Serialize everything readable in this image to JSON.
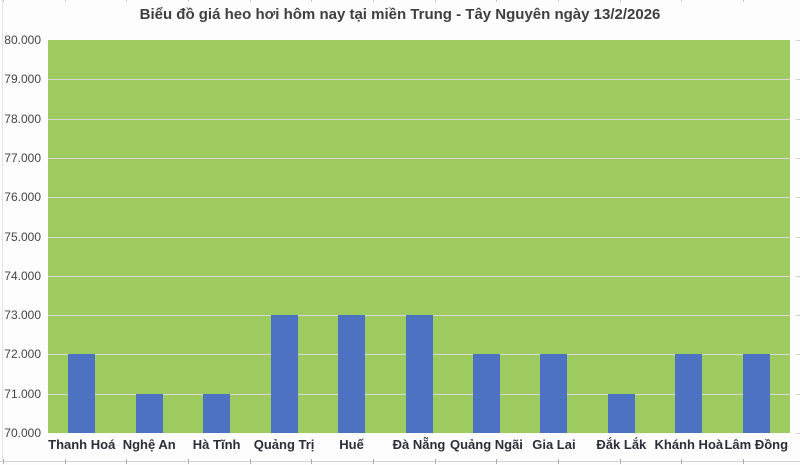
{
  "title": "Biểu đồ giá heo hơi hôm nay tại miền Trung - Tây Nguyên ngày 13/2/2026",
  "chart_data": {
    "type": "bar",
    "title": "Biểu đồ giá heo hơi hôm nay tại miền Trung - Tây Nguyên ngày 13/2/2026",
    "categories": [
      "Thanh Hoá",
      "Nghệ An",
      "Hà Tĩnh",
      "Quảng Trị",
      "Huế",
      "Đà Nẵng",
      "Quảng Ngãi",
      "Gia Lai",
      "Đắk Lắk",
      "Khánh Hoà",
      "Lâm Đồng"
    ],
    "values": [
      72000,
      71000,
      71000,
      73000,
      73000,
      73000,
      72000,
      72000,
      71000,
      72000,
      72000
    ],
    "xlabel": "",
    "ylabel": "",
    "ylim": [
      70000,
      80000
    ],
    "ytick_step": 1000,
    "ytick_labels": [
      "80.000",
      "79.000",
      "78.000",
      "77.000",
      "76.000",
      "75.000",
      "74.000",
      "73.000",
      "72.000",
      "71.000",
      "70.000"
    ],
    "grid": "horizontal",
    "legend": "none"
  },
  "colors": {
    "bar": "#4C72C1",
    "plot_background": "#9DCB60",
    "gridline": "#D8D8D8",
    "title_text": "#3F3F3F",
    "ytick_text": "#444444",
    "xtick_text": "#2B2E36",
    "page_background": "#FDFDFD",
    "frame_line": "#D4D4D4"
  }
}
